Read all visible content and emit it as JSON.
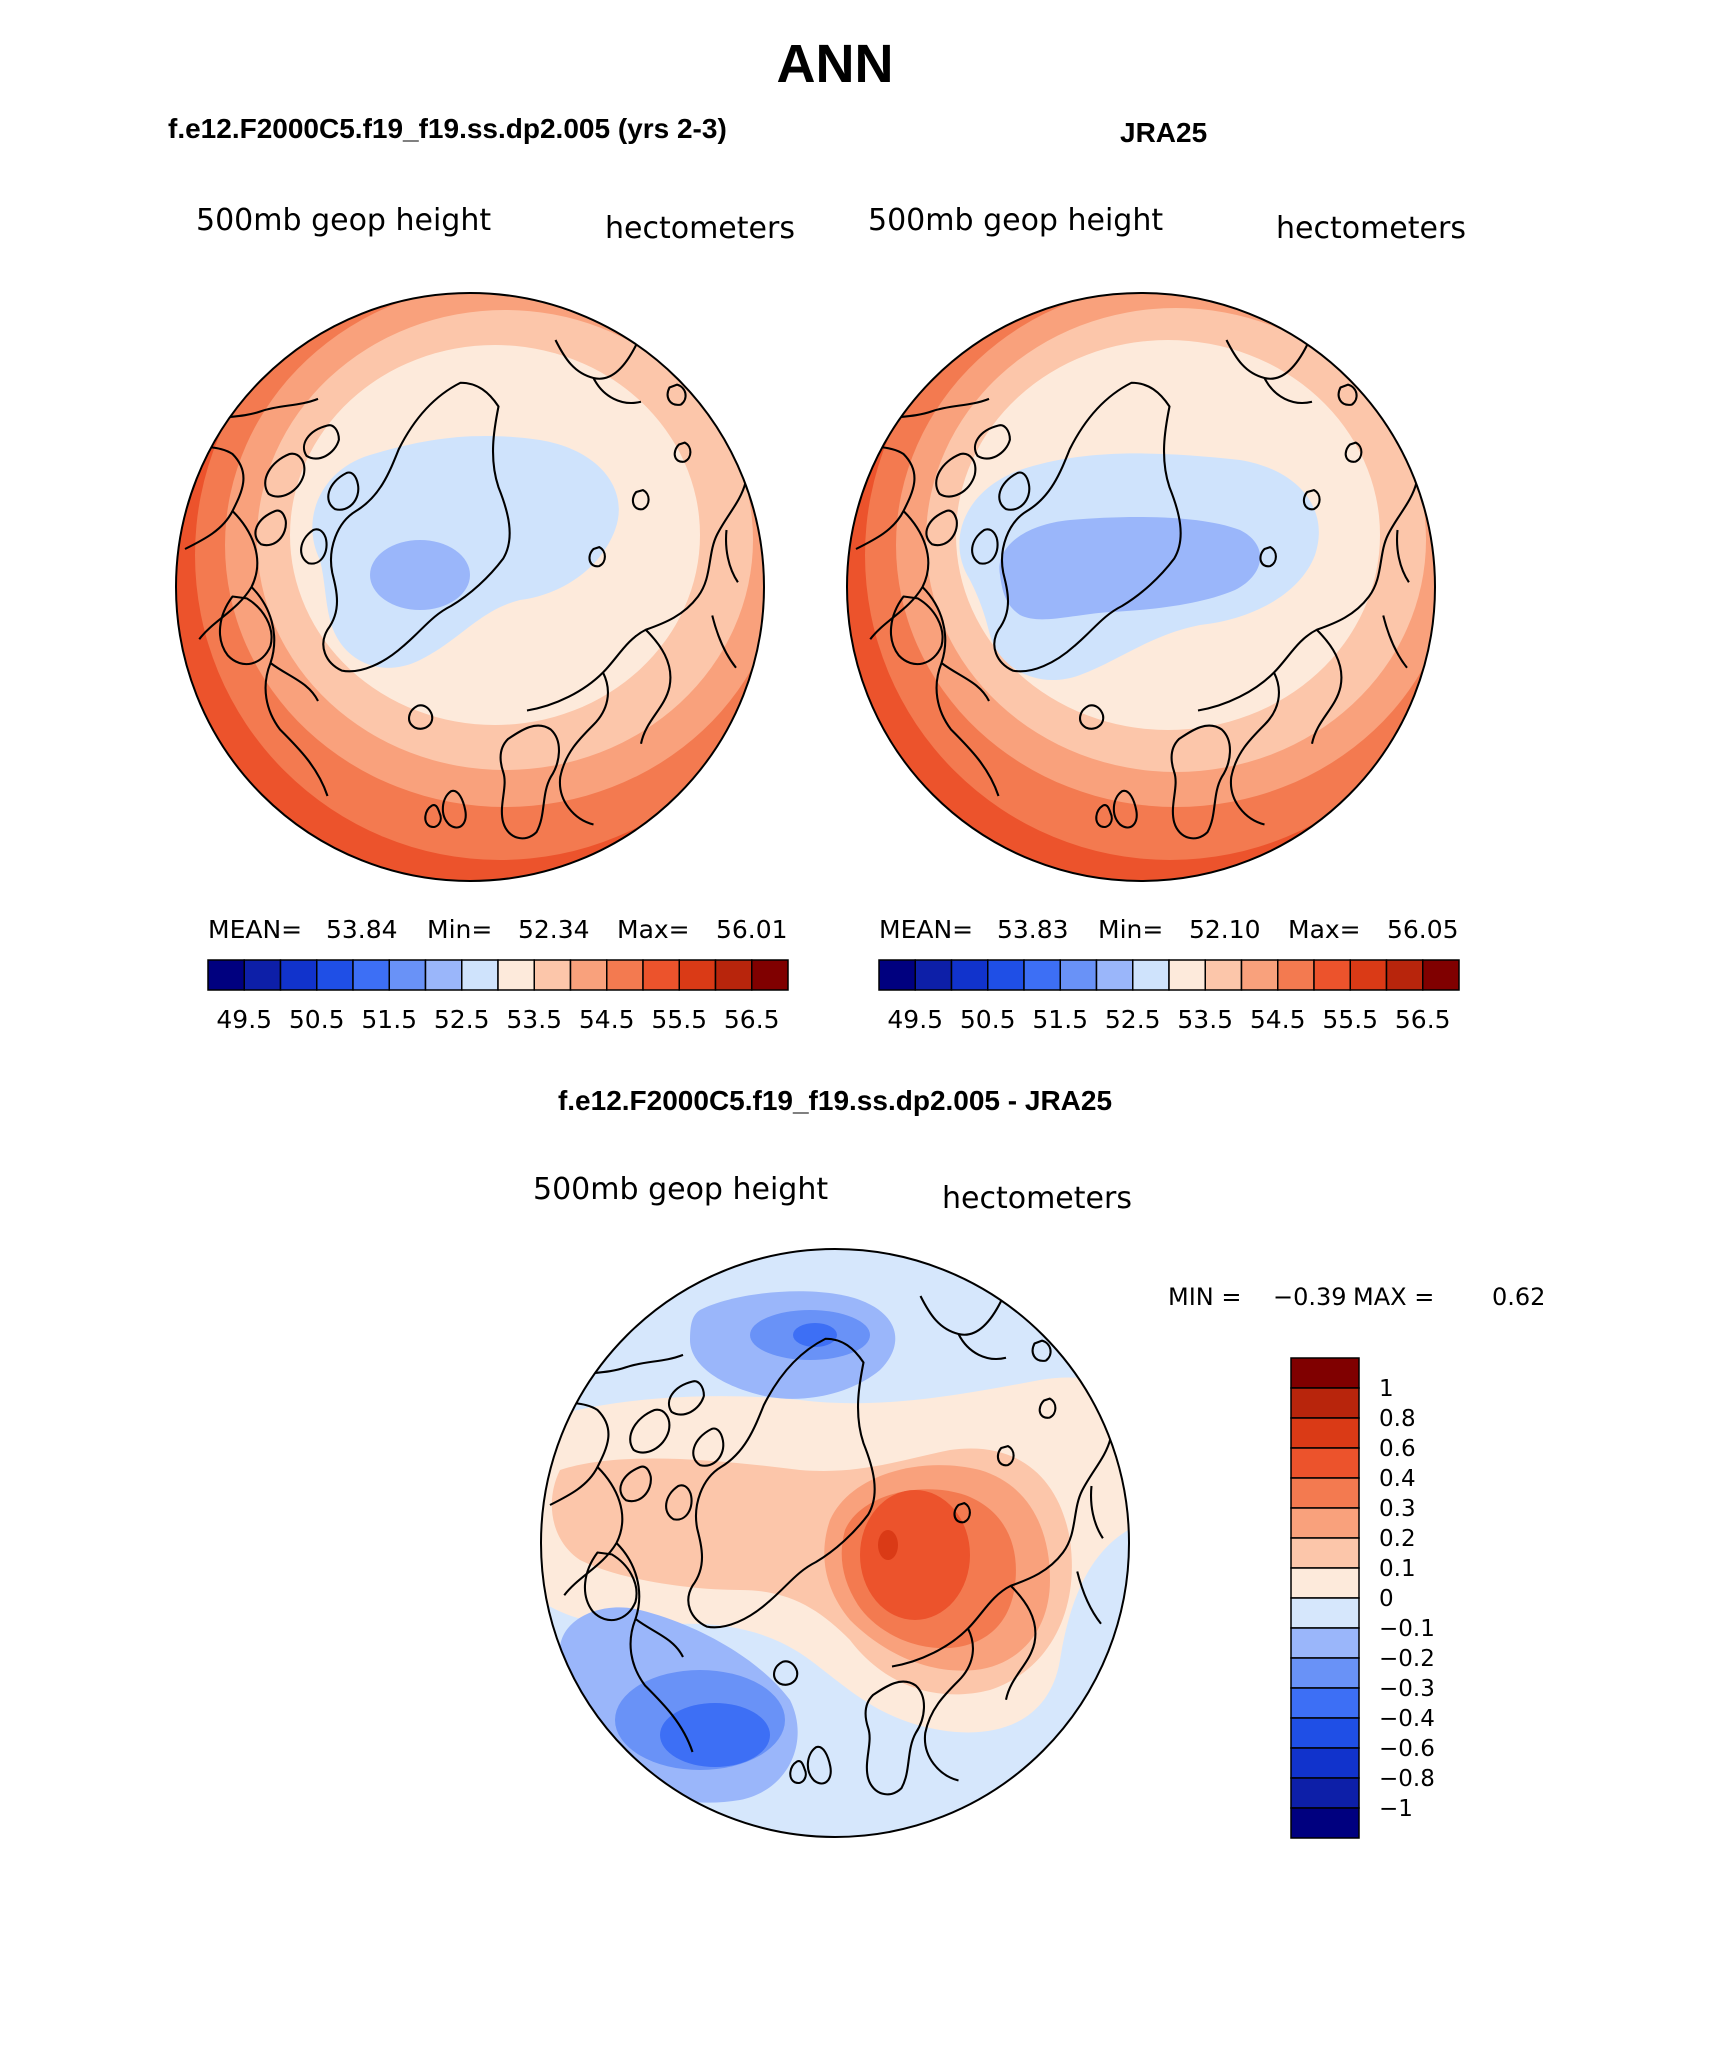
{
  "title": "ANN",
  "colors": {
    "abs": [
      "#00007f",
      "#0d1fa8",
      "#1133cc",
      "#1f4fe6",
      "#3d6ff5",
      "#6992f7",
      "#9ab6fa",
      "#cfe3fc",
      "#fdeadb",
      "#fcc6aa",
      "#f9a17c",
      "#f37a50",
      "#ec532c",
      "#da3a16",
      "#b8250c",
      "#800000"
    ],
    "diff": [
      "#00007f",
      "#0d1fa8",
      "#1133cc",
      "#1f4fe6",
      "#3d6ff5",
      "#6992f7",
      "#9ab6fa",
      "#d6e7fc",
      "#fdeadb",
      "#fcc6aa",
      "#f9a17c",
      "#f37a50",
      "#ec532c",
      "#da3a16",
      "#b8250c",
      "#800000"
    ]
  },
  "chart_data": [
    {
      "type": "heatmap",
      "panel": "model",
      "title": "f.e12.F2000C5.f19_f19.ss.dp2.005 (yrs 2-3)",
      "variable": "500mb geop height",
      "units": "hectometers",
      "mean_label": "MEAN=",
      "mean": "53.84",
      "min_label": "Min=",
      "min": "52.34",
      "max_label": "Max=",
      "max": "56.01",
      "contour_levels": [
        49.5,
        50,
        50.5,
        51,
        51.5,
        52,
        52.5,
        53,
        53.5,
        54,
        54.5,
        55,
        55.5,
        56,
        56.5
      ],
      "colorbar_tick_labels": [
        "49.5",
        "50.5",
        "51.5",
        "52.5",
        "53.5",
        "54.5",
        "55.5",
        "56.5"
      ],
      "region": "Northern Hemisphere polar stereographic"
    },
    {
      "type": "heatmap",
      "panel": "obs",
      "title": "JRA25",
      "variable": "500mb geop height",
      "units": "hectometers",
      "mean_label": "MEAN=",
      "mean": "53.83",
      "min_label": "Min=",
      "min": "52.10",
      "max_label": "Max=",
      "max": "56.05",
      "contour_levels": [
        49.5,
        50,
        50.5,
        51,
        51.5,
        52,
        52.5,
        53,
        53.5,
        54,
        54.5,
        55,
        55.5,
        56,
        56.5
      ],
      "colorbar_tick_labels": [
        "49.5",
        "50.5",
        "51.5",
        "52.5",
        "53.5",
        "54.5",
        "55.5",
        "56.5"
      ],
      "region": "Northern Hemisphere polar stereographic"
    },
    {
      "type": "heatmap",
      "panel": "difference",
      "title": "f.e12.F2000C5.f19_f19.ss.dp2.005 - JRA25",
      "variable": "500mb geop height",
      "units": "hectometers",
      "min_label": "MIN =",
      "min": "−0.39",
      "max_label": "MAX =",
      "max": "0.62",
      "contour_levels": [
        -1,
        -0.8,
        -0.6,
        -0.4,
        -0.3,
        -0.2,
        -0.1,
        0,
        0.1,
        0.2,
        0.3,
        0.4,
        0.6,
        0.8,
        1
      ],
      "colorbar_tick_labels": [
        "1",
        "0.8",
        "0.6",
        "0.4",
        "0.3",
        "0.2",
        "0.1",
        "0",
        "−0.1",
        "−0.2",
        "−0.3",
        "−0.4",
        "−0.6",
        "−0.8",
        "−1"
      ],
      "region": "Northern Hemisphere polar stereographic"
    }
  ]
}
